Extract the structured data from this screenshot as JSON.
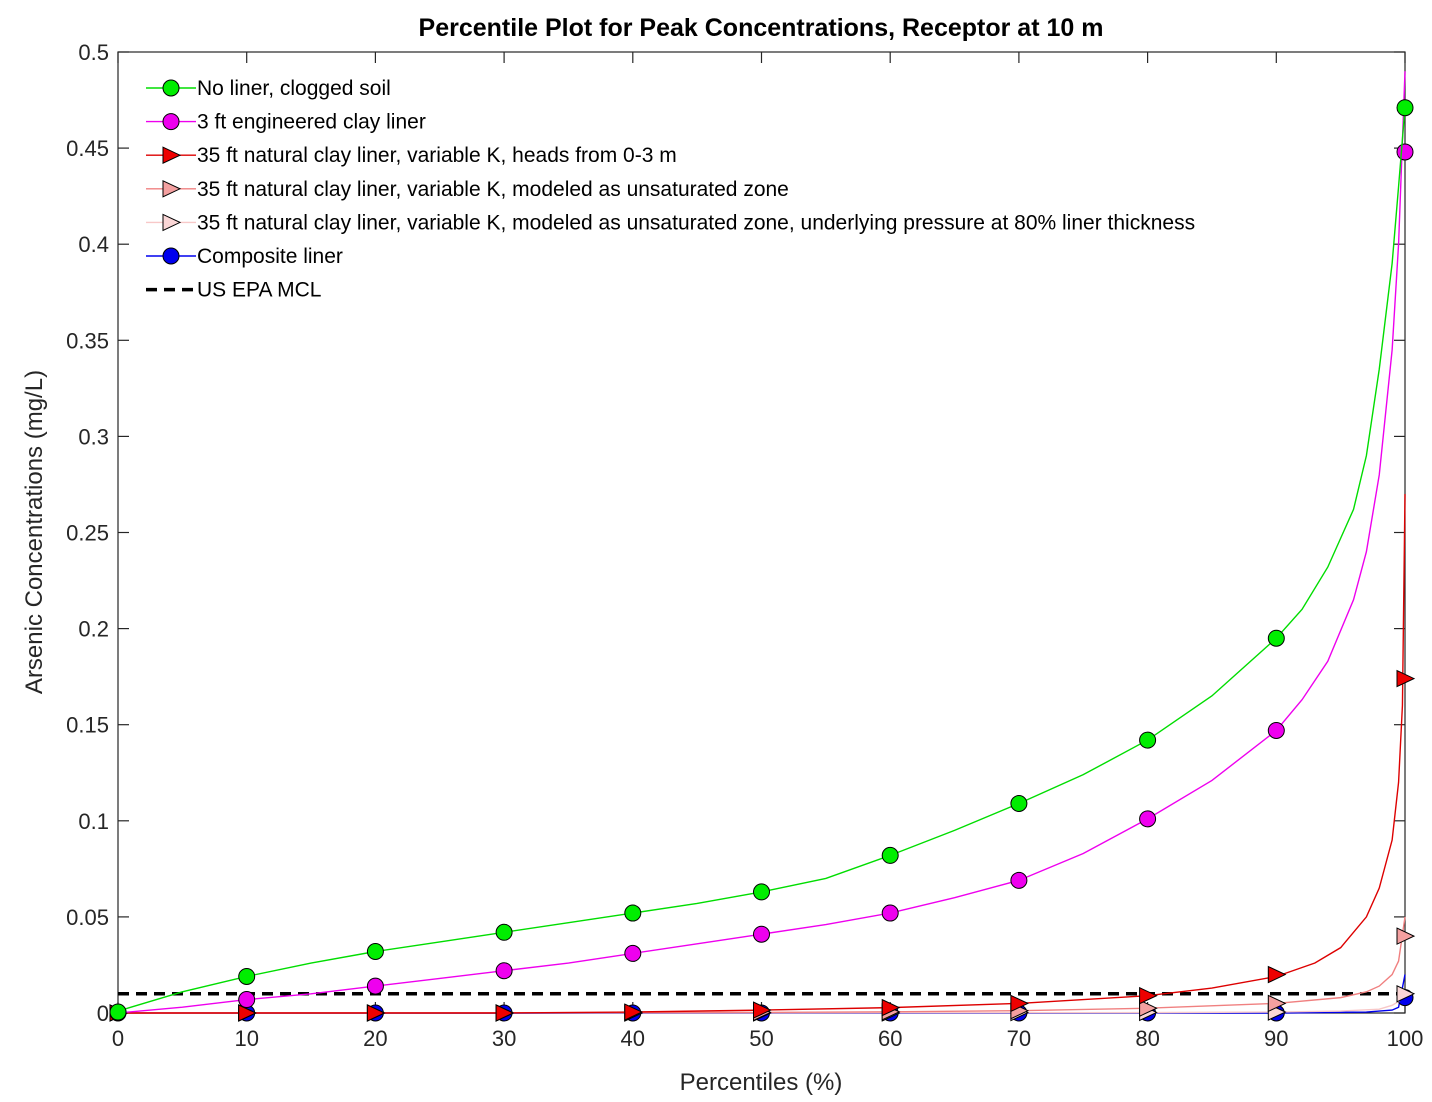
{
  "chart_data": {
    "type": "line",
    "title": "Percentile Plot for Peak Concentrations, Receptor at 10 m",
    "xlabel": "Percentiles (%)",
    "ylabel": "Arsenic Concentrations (mg/L)",
    "xlim": [
      0,
      100
    ],
    "ylim": [
      0,
      0.5
    ],
    "xticks": [
      0,
      10,
      20,
      30,
      40,
      50,
      60,
      70,
      80,
      90,
      100
    ],
    "xtick_labels": [
      "0",
      "10",
      "20",
      "30",
      "40",
      "50",
      "60",
      "70",
      "80",
      "90",
      "100"
    ],
    "yticks": [
      0,
      0.05,
      0.1,
      0.15,
      0.2,
      0.25,
      0.3,
      0.35,
      0.4,
      0.45,
      0.5
    ],
    "ytick_labels": [
      "0",
      "0.05",
      "0.1",
      "0.15",
      "0.2",
      "0.25",
      "0.3",
      "0.35",
      "0.4",
      "0.45",
      "0.5"
    ],
    "grid": false,
    "legend_position": "top-left",
    "series": [
      {
        "name": "No liner, clogged soil",
        "color": "#00dd00",
        "marker": "circle",
        "marker_fill": "#00ee00",
        "curve_x": [
          0,
          5,
          10,
          15,
          20,
          25,
          30,
          35,
          40,
          45,
          50,
          55,
          60,
          65,
          70,
          75,
          80,
          85,
          90,
          92,
          94,
          96,
          97,
          98,
          99,
          99.5,
          100
        ],
        "curve_y": [
          0.001,
          0.011,
          0.019,
          0.026,
          0.032,
          0.037,
          0.042,
          0.047,
          0.052,
          0.057,
          0.063,
          0.07,
          0.082,
          0.095,
          0.109,
          0.124,
          0.142,
          0.165,
          0.195,
          0.21,
          0.232,
          0.262,
          0.29,
          0.335,
          0.39,
          0.43,
          0.471
        ],
        "marker_x": [
          0,
          10,
          20,
          30,
          40,
          50,
          60,
          70,
          80,
          90,
          100
        ],
        "marker_y": [
          0.0005,
          0.019,
          0.032,
          0.042,
          0.052,
          0.063,
          0.082,
          0.109,
          0.142,
          0.195,
          0.471
        ]
      },
      {
        "name": "3 ft engineered clay liner",
        "color": "#ee00ee",
        "marker": "circle",
        "marker_fill": "#ee00ee",
        "curve_x": [
          0,
          5,
          10,
          15,
          20,
          25,
          30,
          35,
          40,
          45,
          50,
          55,
          60,
          65,
          70,
          75,
          80,
          85,
          90,
          92,
          94,
          96,
          97,
          98,
          99,
          99.5,
          100
        ],
        "curve_y": [
          0.0,
          0.003,
          0.007,
          0.01,
          0.014,
          0.018,
          0.022,
          0.026,
          0.031,
          0.036,
          0.041,
          0.046,
          0.052,
          0.06,
          0.069,
          0.083,
          0.101,
          0.121,
          0.147,
          0.163,
          0.183,
          0.215,
          0.24,
          0.28,
          0.345,
          0.4,
          0.49
        ],
        "marker_x": [
          0,
          10,
          20,
          30,
          40,
          50,
          60,
          70,
          80,
          90,
          100
        ],
        "marker_y": [
          0.0002,
          0.007,
          0.014,
          0.022,
          0.031,
          0.041,
          0.052,
          0.069,
          0.101,
          0.147,
          0.448
        ]
      },
      {
        "name": "35 ft natural clay liner, variable K, heads from 0-3 m",
        "color": "#dd0000",
        "marker": "triangle-right",
        "marker_fill": "#ee0000",
        "curve_x": [
          0,
          30,
          40,
          50,
          60,
          70,
          80,
          85,
          90,
          93,
          95,
          97,
          98,
          99,
          99.5,
          99.8,
          100
        ],
        "curve_y": [
          0.0,
          0.0,
          0.0005,
          0.0015,
          0.0028,
          0.005,
          0.009,
          0.013,
          0.019,
          0.026,
          0.034,
          0.05,
          0.065,
          0.09,
          0.12,
          0.16,
          0.27
        ],
        "marker_x": [
          0,
          10,
          20,
          30,
          40,
          50,
          60,
          70,
          80,
          90,
          100
        ],
        "marker_y": [
          0.0,
          0.0,
          0.0,
          0.0,
          0.0005,
          0.0015,
          0.0028,
          0.005,
          0.009,
          0.02,
          0.174
        ]
      },
      {
        "name": "35 ft natural clay liner, variable K, modeled as unsaturated zone",
        "color": "#f08080",
        "marker": "triangle-right",
        "marker_fill": "#f4a0a0",
        "curve_x": [
          0,
          50,
          60,
          70,
          80,
          90,
          95,
          97,
          98,
          99,
          99.5,
          100
        ],
        "curve_y": [
          0.0,
          0.0003,
          0.0006,
          0.0012,
          0.0025,
          0.005,
          0.008,
          0.011,
          0.014,
          0.02,
          0.027,
          0.05
        ],
        "marker_x": [
          0,
          10,
          20,
          30,
          40,
          50,
          60,
          70,
          80,
          90,
          100
        ],
        "marker_y": [
          0.0,
          0.0,
          0.0,
          0.0,
          0.0,
          0.0003,
          0.0006,
          0.0012,
          0.0025,
          0.005,
          0.04
        ]
      },
      {
        "name": "35 ft natural clay liner, variable K, modeled as unsaturated zone, underlying pressure at 80% liner thickness",
        "color": "#f8c8c8",
        "marker": "triangle-right",
        "marker_fill": "#fad6d6",
        "curve_x": [
          0,
          80,
          90,
          95,
          98,
          99,
          99.5,
          100
        ],
        "curve_y": [
          0.0,
          0.0002,
          0.0005,
          0.001,
          0.002,
          0.004,
          0.006,
          0.012
        ],
        "marker_x": [
          0,
          10,
          20,
          30,
          40,
          50,
          60,
          70,
          80,
          90,
          100
        ],
        "marker_y": [
          0.0,
          0.0,
          0.0,
          0.0,
          0.0,
          0.0,
          0.0,
          0.0002,
          0.0003,
          0.0005,
          0.01
        ]
      },
      {
        "name": "Composite liner",
        "color": "#0000ee",
        "marker": "circle",
        "marker_fill": "#0000ee",
        "curve_x": [
          0,
          90,
          97,
          99,
          99.5,
          100
        ],
        "curve_y": [
          0.0,
          0.0,
          0.0005,
          0.0015,
          0.003,
          0.02
        ],
        "marker_x": [
          0,
          10,
          20,
          30,
          40,
          50,
          60,
          70,
          80,
          90,
          100
        ],
        "marker_y": [
          0.0,
          0.0,
          0.0,
          0.0,
          0.0,
          0.0,
          0.0,
          0.0,
          0.0,
          0.0,
          0.008
        ]
      },
      {
        "name": "US EPA MCL",
        "color": "#000000",
        "marker": "none",
        "dashed": true,
        "curve_x": [
          0,
          100
        ],
        "curve_y": [
          0.01,
          0.01
        ]
      }
    ]
  }
}
